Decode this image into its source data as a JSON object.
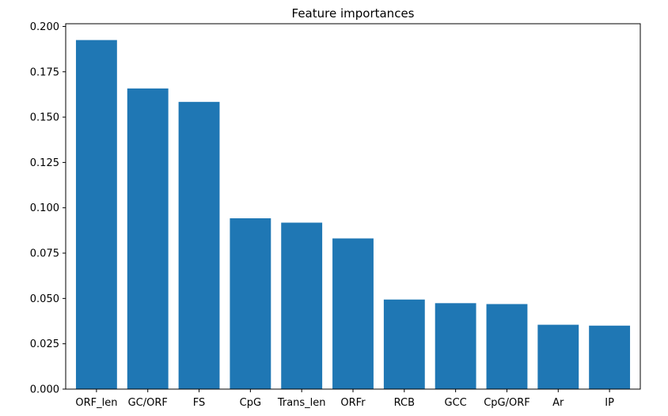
{
  "chart_data": {
    "type": "bar",
    "title": "Feature importances",
    "xlabel": "",
    "ylabel": "",
    "categories": [
      "ORF_len",
      "GC/ORF",
      "FS",
      "CpG",
      "Trans_len",
      "ORFr",
      "RCB",
      "GCC",
      "CpG/ORF",
      "Ar",
      "IP"
    ],
    "values": [
      0.1925,
      0.1658,
      0.1584,
      0.0942,
      0.0918,
      0.0831,
      0.0494,
      0.0474,
      0.0469,
      0.0355,
      0.035
    ],
    "ylim": [
      0,
      0.2015
    ],
    "yticks": [
      "0.000",
      "0.025",
      "0.050",
      "0.075",
      "0.100",
      "0.125",
      "0.150",
      "0.175",
      "0.200"
    ],
    "grid": false,
    "bar_color": "#1f77b4"
  }
}
